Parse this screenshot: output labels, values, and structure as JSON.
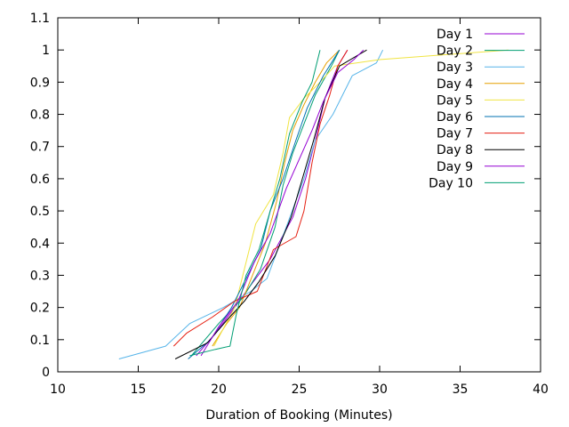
{
  "chart_data": {
    "type": "line",
    "title": "",
    "xlabel": "Duration of Booking (Minutes)",
    "ylabel": "",
    "xlim": [
      10,
      40
    ],
    "ylim": [
      0,
      1.1
    ],
    "xticks": [
      "10",
      "15",
      "20",
      "25",
      "30",
      "35",
      "40"
    ],
    "yticks": [
      "0",
      "0.1",
      "0.2",
      "0.3",
      "0.4",
      "0.5",
      "0.6",
      "0.7",
      "0.8",
      "0.9",
      "1",
      "1.1"
    ],
    "grid": false,
    "legend_position": "top-right",
    "series": [
      {
        "name": "Day 1",
        "color": "#9400d3",
        "x": [
          18.6,
          19.8,
          21.0,
          22.0,
          23.2,
          24.6,
          25.4,
          26.0,
          26.6,
          27.4,
          28.0
        ],
        "y": [
          0.05,
          0.12,
          0.2,
          0.27,
          0.35,
          0.48,
          0.6,
          0.72,
          0.85,
          0.95,
          1.0
        ]
      },
      {
        "name": "Day 2",
        "color": "#009e73",
        "x": [
          18.3,
          20.0,
          21.5,
          22.6,
          23.5,
          24.0,
          24.6,
          25.3,
          26.0,
          27.0,
          27.5
        ],
        "y": [
          0.05,
          0.15,
          0.23,
          0.32,
          0.45,
          0.58,
          0.68,
          0.77,
          0.86,
          0.95,
          1.0
        ]
      },
      {
        "name": "Day 3",
        "color": "#56b4e9",
        "x": [
          13.8,
          16.7,
          18.2,
          20.3,
          22.0,
          23.0,
          24.2,
          25.3,
          26.0,
          27.1,
          28.3,
          29.8,
          30.2
        ],
        "y": [
          0.04,
          0.08,
          0.15,
          0.2,
          0.25,
          0.29,
          0.45,
          0.6,
          0.72,
          0.8,
          0.92,
          0.96,
          1.0
        ]
      },
      {
        "name": "Day 4",
        "color": "#e69f00",
        "x": [
          19.6,
          20.5,
          21.3,
          22.1,
          22.9,
          23.6,
          24.1,
          24.6,
          25.3,
          26.0,
          26.7,
          27.5
        ],
        "y": [
          0.08,
          0.15,
          0.2,
          0.3,
          0.4,
          0.53,
          0.65,
          0.75,
          0.83,
          0.9,
          0.96,
          1.0
        ]
      },
      {
        "name": "Day 5",
        "color": "#f0e442",
        "x": [
          19.7,
          21.0,
          22.3,
          23.4,
          24.0,
          24.4,
          25.3,
          26.3,
          27.2,
          30.0,
          38.0
        ],
        "y": [
          0.08,
          0.2,
          0.46,
          0.55,
          0.68,
          0.79,
          0.85,
          0.9,
          0.95,
          0.97,
          1.0
        ]
      },
      {
        "name": "Day 6",
        "color": "#0072b2",
        "x": [
          18.1,
          19.5,
          20.8,
          21.6,
          22.6,
          23.2,
          24.0,
          24.8,
          25.5,
          26.5,
          27.5
        ],
        "y": [
          0.04,
          0.1,
          0.2,
          0.28,
          0.38,
          0.5,
          0.6,
          0.72,
          0.82,
          0.92,
          1.0
        ]
      },
      {
        "name": "Day 7",
        "color": "#e51e10",
        "x": [
          17.2,
          18.0,
          19.6,
          21.0,
          22.4,
          23.4,
          24.8,
          25.3,
          25.8,
          26.3,
          26.9,
          27.4,
          28.0
        ],
        "y": [
          0.08,
          0.12,
          0.17,
          0.22,
          0.25,
          0.38,
          0.42,
          0.5,
          0.65,
          0.77,
          0.86,
          0.95,
          1.0
        ]
      },
      {
        "name": "Day 8",
        "color": "#000000",
        "x": [
          17.3,
          19.3,
          20.5,
          21.6,
          22.5,
          23.5,
          24.5,
          25.2,
          25.9,
          26.6,
          27.5,
          29.2
        ],
        "y": [
          0.04,
          0.09,
          0.16,
          0.22,
          0.28,
          0.36,
          0.48,
          0.6,
          0.72,
          0.85,
          0.95,
          1.0
        ]
      },
      {
        "name": "Day 9",
        "color": "#9400d3",
        "x": [
          18.9,
          20.0,
          21.2,
          22.2,
          23.2,
          24.2,
          25.0,
          25.8,
          26.5,
          27.4,
          28.4,
          29.0
        ],
        "y": [
          0.05,
          0.14,
          0.22,
          0.34,
          0.43,
          0.57,
          0.66,
          0.75,
          0.84,
          0.93,
          0.97,
          1.0
        ]
      },
      {
        "name": "Day 10",
        "color": "#009e73",
        "x": [
          18.2,
          19.8,
          20.7,
          21.1,
          21.7,
          22.5,
          23.2,
          23.8,
          24.4,
          25.2,
          25.8,
          26.3
        ],
        "y": [
          0.05,
          0.07,
          0.08,
          0.18,
          0.3,
          0.38,
          0.5,
          0.6,
          0.74,
          0.84,
          0.9,
          1.0
        ]
      }
    ]
  }
}
